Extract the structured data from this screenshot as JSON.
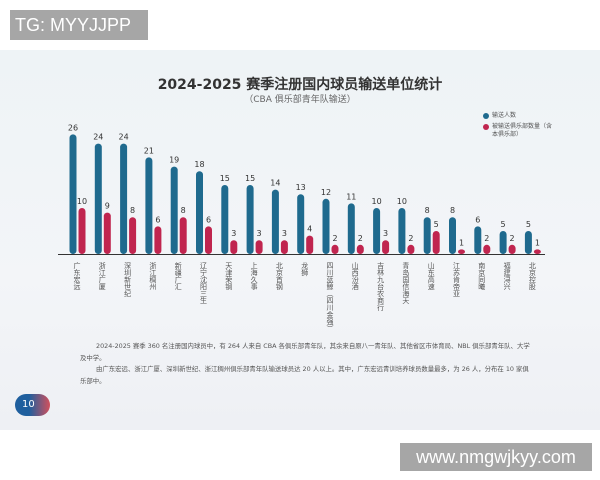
{
  "overlay_tag": "TG: MYYJJPP",
  "watermark": "www.nmgwjkyy.com",
  "page_number": "10",
  "paragraphs": [
    "2024-2025 赛季 360 名注册国内球员中，有 264 人来自 CBA 各俱乐部青年队，其余来自原八一青年队、其他省区市体育局、NBL 俱乐部青年队、大学及中学。",
    "由广东宏远、浙江广厦、深圳新世纪、浙江稠州俱乐部青年队输送球员达 20 人以上。其中，广东宏远青训培养球员数量最多，为 26 人，分布在 10 家俱乐部中。"
  ],
  "chart_data": {
    "type": "bar",
    "title": "2024-2025 赛季注册国内球员输送单位统计",
    "subtitle": "（CBA 俱乐部青年队输送）",
    "legend_position": "top-right",
    "grid": false,
    "categories": [
      "广东宏远",
      "浙江广厦",
      "深圳新世纪",
      "浙江稠州",
      "新疆广汇",
      "辽宁沈阳三生",
      "天津荣钢",
      "上海久事",
      "北京首钢",
      "龙狮",
      "四川蓝鲸（四川金强）",
      "山西汾酒",
      "吉林九台农商行",
      "青岛国信海天",
      "山东高速",
      "江苏肯帝亚",
      "南京同曦",
      "福建浔兴",
      "北京控股"
    ],
    "series": [
      {
        "name": "输送人数",
        "color": "#1f6a8e",
        "values": [
          26,
          24,
          24,
          21,
          19,
          18,
          15,
          15,
          14,
          13,
          12,
          11,
          10,
          10,
          8,
          8,
          6,
          5,
          5
        ]
      },
      {
        "name": "被输送俱乐部数量（含本俱乐部）",
        "color": "#c0254f",
        "values": [
          10,
          9,
          8,
          6,
          8,
          6,
          3,
          3,
          3,
          4,
          2,
          2,
          3,
          2,
          5,
          1,
          2,
          2,
          1
        ]
      }
    ]
  }
}
